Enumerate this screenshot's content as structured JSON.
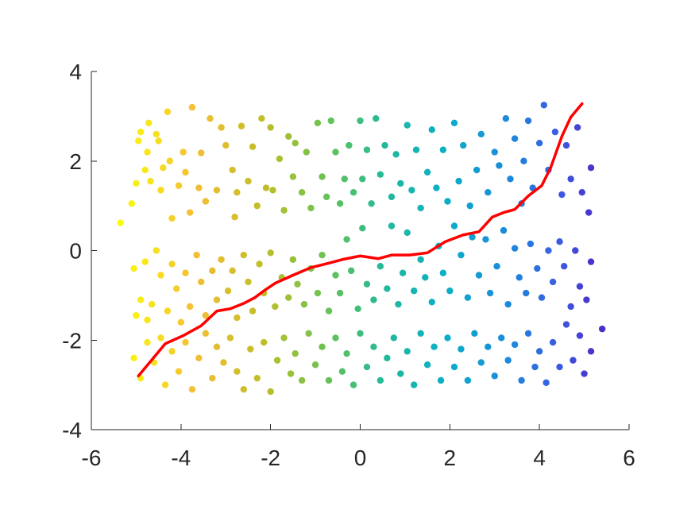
{
  "chart_data": {
    "type": "scatter",
    "title": "",
    "xlabel": "",
    "ylabel": "",
    "xlim": [
      -6,
      6
    ],
    "ylim": [
      -4,
      4
    ],
    "x_ticks": [
      "-6",
      "-4",
      "-2",
      "0",
      "2",
      "4",
      "6"
    ],
    "y_ticks": [
      "4",
      "2",
      "0",
      "-2",
      "-4"
    ],
    "x_tick_values": [
      -6,
      -4,
      -2,
      0,
      2,
      4,
      6
    ],
    "y_tick_values": [
      4,
      2,
      0,
      -2,
      -4
    ],
    "grid": false,
    "box": false,
    "colormap": "parula",
    "color_encodes": "x (yellow at -5 to blue at +5)",
    "scatter_points": [
      [
        -5.35,
        0.62
      ],
      [
        -5.1,
        1.05
      ],
      [
        -5.0,
        1.5
      ],
      [
        -4.95,
        2.45
      ],
      [
        -4.9,
        2.65
      ],
      [
        -4.8,
        1.8
      ],
      [
        -4.75,
        2.2
      ],
      [
        -4.72,
        2.85
      ],
      [
        -4.68,
        1.55
      ],
      [
        -4.55,
        2.6
      ],
      [
        -4.5,
        2.45
      ],
      [
        -4.45,
        1.35
      ],
      [
        -4.4,
        1.85
      ],
      [
        -4.3,
        3.1
      ],
      [
        -4.25,
        2.0
      ],
      [
        -4.2,
        0.72
      ],
      [
        -4.05,
        1.45
      ],
      [
        -3.95,
        2.2
      ],
      [
        -3.9,
        1.75
      ],
      [
        -3.8,
        0.85
      ],
      [
        -3.75,
        3.2
      ],
      [
        -3.6,
        1.4
      ],
      [
        -3.55,
        2.18
      ],
      [
        -3.45,
        1.1
      ],
      [
        -3.35,
        2.95
      ],
      [
        -3.2,
        1.35
      ],
      [
        -3.1,
        2.75
      ],
      [
        -3.0,
        2.35
      ],
      [
        -2.85,
        1.8
      ],
      [
        -2.8,
        0.75
      ],
      [
        -2.75,
        1.3
      ],
      [
        -2.65,
        2.78
      ],
      [
        -2.5,
        1.55
      ],
      [
        -2.4,
        2.32
      ],
      [
        -2.3,
        1.0
      ],
      [
        -2.2,
        2.95
      ],
      [
        -2.1,
        1.4
      ],
      [
        -2.0,
        2.75
      ],
      [
        -1.95,
        1.35
      ],
      [
        -1.8,
        2.05
      ],
      [
        -1.7,
        0.9
      ],
      [
        -1.6,
        2.55
      ],
      [
        -1.5,
        1.65
      ],
      [
        -1.45,
        2.4
      ],
      [
        -1.3,
        1.3
      ],
      [
        -1.2,
        2.2
      ],
      [
        -1.1,
        0.95
      ],
      [
        -0.95,
        2.85
      ],
      [
        -0.85,
        1.65
      ],
      [
        -0.75,
        1.2
      ],
      [
        -0.65,
        2.9
      ],
      [
        -0.55,
        2.2
      ],
      [
        -0.45,
        1.05
      ],
      [
        -0.35,
        1.6
      ],
      [
        -0.25,
        2.35
      ],
      [
        -0.15,
        1.3
      ],
      [
        0.0,
        2.9
      ],
      [
        0.05,
        1.6
      ],
      [
        0.15,
        2.25
      ],
      [
        0.25,
        1.05
      ],
      [
        0.35,
        2.95
      ],
      [
        0.45,
        1.7
      ],
      [
        0.55,
        2.35
      ],
      [
        0.7,
        1.2
      ],
      [
        0.8,
        2.15
      ],
      [
        0.9,
        1.5
      ],
      [
        1.05,
        2.8
      ],
      [
        1.15,
        1.35
      ],
      [
        1.25,
        2.25
      ],
      [
        1.35,
        0.95
      ],
      [
        1.5,
        1.75
      ],
      [
        1.6,
        2.7
      ],
      [
        1.7,
        1.4
      ],
      [
        1.85,
        2.25
      ],
      [
        1.95,
        1.1
      ],
      [
        2.1,
        2.85
      ],
      [
        2.2,
        1.55
      ],
      [
        2.3,
        2.35
      ],
      [
        2.45,
        1.0
      ],
      [
        2.6,
        1.8
      ],
      [
        2.7,
        2.6
      ],
      [
        2.85,
        1.3
      ],
      [
        3.0,
        2.2
      ],
      [
        3.1,
        1.9
      ],
      [
        3.25,
        2.95
      ],
      [
        3.35,
        1.6
      ],
      [
        3.45,
        2.5
      ],
      [
        3.6,
        1.05
      ],
      [
        3.65,
        2.0
      ],
      [
        3.75,
        2.9
      ],
      [
        3.85,
        1.4
      ],
      [
        4.0,
        2.4
      ],
      [
        4.1,
        3.25
      ],
      [
        4.2,
        1.8
      ],
      [
        4.35,
        2.65
      ],
      [
        4.5,
        1.25
      ],
      [
        4.6,
        2.35
      ],
      [
        4.7,
        1.6
      ],
      [
        4.85,
        2.75
      ],
      [
        4.95,
        1.3
      ],
      [
        5.1,
        0.85
      ],
      [
        5.15,
        1.85
      ],
      [
        -5.05,
        -0.4
      ],
      [
        -5.0,
        -1.45
      ],
      [
        -4.9,
        -1.1
      ],
      [
        -4.8,
        -0.25
      ],
      [
        -4.75,
        -1.55
      ],
      [
        -4.65,
        -1.2
      ],
      [
        -4.55,
        -0.0
      ],
      [
        -4.45,
        -0.55
      ],
      [
        -4.3,
        -1.35
      ],
      [
        -4.2,
        -0.3
      ],
      [
        -4.1,
        -0.85
      ],
      [
        -4.0,
        -1.6
      ],
      [
        -3.9,
        -0.5
      ],
      [
        -3.8,
        -1.25
      ],
      [
        -3.65,
        -0.1
      ],
      [
        -3.55,
        -0.7
      ],
      [
        -3.45,
        -1.45
      ],
      [
        -3.3,
        -0.45
      ],
      [
        -3.2,
        -1.1
      ],
      [
        -3.1,
        -0.2
      ],
      [
        -2.95,
        -0.9
      ],
      [
        -2.85,
        -0.45
      ],
      [
        -2.75,
        -1.5
      ],
      [
        -2.6,
        -0.1
      ],
      [
        -2.5,
        -0.7
      ],
      [
        -2.4,
        -1.35
      ],
      [
        -2.25,
        -0.3
      ],
      [
        -2.15,
        -0.95
      ],
      [
        -2.0,
        -0.05
      ],
      [
        -1.9,
        -1.25
      ],
      [
        -1.75,
        -0.6
      ],
      [
        -1.6,
        -1.05
      ],
      [
        -1.5,
        -0.2
      ],
      [
        -1.4,
        -0.75
      ],
      [
        -1.25,
        -1.2
      ],
      [
        -1.1,
        -0.4
      ],
      [
        -0.95,
        -0.95
      ],
      [
        -0.85,
        -0.1
      ],
      [
        -0.7,
        -1.35
      ],
      [
        -0.55,
        -0.55
      ],
      [
        -0.45,
        -0.95
      ],
      [
        -0.3,
        0.25
      ],
      [
        -0.2,
        -0.45
      ],
      [
        -0.05,
        -1.3
      ],
      [
        0.05,
        0.5
      ],
      [
        0.15,
        -0.75
      ],
      [
        0.3,
        -1.1
      ],
      [
        0.45,
        -0.35
      ],
      [
        0.6,
        -0.85
      ],
      [
        0.7,
        0.55
      ],
      [
        0.85,
        -1.2
      ],
      [
        0.95,
        -0.5
      ],
      [
        1.05,
        0.4
      ],
      [
        1.2,
        -0.9
      ],
      [
        1.35,
        -0.2
      ],
      [
        1.45,
        -0.6
      ],
      [
        1.6,
        -1.15
      ],
      [
        1.75,
        0.1
      ],
      [
        1.85,
        -0.5
      ],
      [
        2.0,
        -0.9
      ],
      [
        2.1,
        0.55
      ],
      [
        2.25,
        -0.1
      ],
      [
        2.4,
        -1.05
      ],
      [
        2.5,
        0.3
      ],
      [
        2.65,
        -0.55
      ],
      [
        2.8,
        0.25
      ],
      [
        2.9,
        -0.95
      ],
      [
        3.05,
        -0.35
      ],
      [
        3.2,
        0.45
      ],
      [
        3.3,
        -1.2
      ],
      [
        3.45,
        0.05
      ],
      [
        3.55,
        -0.6
      ],
      [
        3.7,
        -0.95
      ],
      [
        3.8,
        0.15
      ],
      [
        3.95,
        -0.4
      ],
      [
        4.05,
        -1.05
      ],
      [
        4.2,
        0.0
      ],
      [
        4.3,
        -0.7
      ],
      [
        4.45,
        0.2
      ],
      [
        4.55,
        -0.35
      ],
      [
        4.7,
        -1.25
      ],
      [
        4.8,
        -0.0
      ],
      [
        4.9,
        -0.8
      ],
      [
        5.05,
        -1.1
      ],
      [
        5.15,
        -0.25
      ],
      [
        -5.05,
        -2.4
      ],
      [
        -4.9,
        -2.85
      ],
      [
        -4.75,
        -2.05
      ],
      [
        -4.6,
        -2.5
      ],
      [
        -4.45,
        -1.95
      ],
      [
        -4.35,
        -3.0
      ],
      [
        -4.2,
        -2.25
      ],
      [
        -4.05,
        -2.7
      ],
      [
        -3.9,
        -2.05
      ],
      [
        -3.75,
        -3.1
      ],
      [
        -3.6,
        -2.4
      ],
      [
        -3.45,
        -1.85
      ],
      [
        -3.3,
        -2.85
      ],
      [
        -3.2,
        -2.15
      ],
      [
        -3.05,
        -2.5
      ],
      [
        -2.9,
        -1.95
      ],
      [
        -2.75,
        -2.7
      ],
      [
        -2.6,
        -3.1
      ],
      [
        -2.45,
        -2.2
      ],
      [
        -2.3,
        -2.85
      ],
      [
        -2.15,
        -2.05
      ],
      [
        -2.0,
        -3.15
      ],
      [
        -1.85,
        -2.45
      ],
      [
        -1.7,
        -1.95
      ],
      [
        -1.55,
        -2.75
      ],
      [
        -1.45,
        -2.3
      ],
      [
        -1.3,
        -2.9
      ],
      [
        -1.15,
        -1.85
      ],
      [
        -1.0,
        -2.55
      ],
      [
        -0.85,
        -2.15
      ],
      [
        -0.7,
        -2.9
      ],
      [
        -0.55,
        -1.95
      ],
      [
        -0.4,
        -2.7
      ],
      [
        -0.3,
        -2.3
      ],
      [
        -0.15,
        -3.0
      ],
      [
        0.0,
        -1.85
      ],
      [
        0.15,
        -2.6
      ],
      [
        0.3,
        -2.15
      ],
      [
        0.45,
        -2.9
      ],
      [
        0.6,
        -2.4
      ],
      [
        0.75,
        -1.95
      ],
      [
        0.9,
        -2.75
      ],
      [
        1.05,
        -2.25
      ],
      [
        1.2,
        -3.0
      ],
      [
        1.35,
        -1.85
      ],
      [
        1.5,
        -2.55
      ],
      [
        1.65,
        -2.15
      ],
      [
        1.8,
        -2.9
      ],
      [
        1.95,
        -1.95
      ],
      [
        2.1,
        -2.6
      ],
      [
        2.25,
        -2.2
      ],
      [
        2.4,
        -2.9
      ],
      [
        2.55,
        -1.85
      ],
      [
        2.7,
        -2.5
      ],
      [
        2.85,
        -2.15
      ],
      [
        3.0,
        -2.8
      ],
      [
        3.15,
        -1.95
      ],
      [
        3.3,
        -2.45
      ],
      [
        3.45,
        -2.1
      ],
      [
        3.6,
        -2.9
      ],
      [
        3.75,
        -1.85
      ],
      [
        3.9,
        -2.6
      ],
      [
        4.0,
        -2.25
      ],
      [
        4.15,
        -2.95
      ],
      [
        4.3,
        -2.05
      ],
      [
        4.45,
        -2.6
      ],
      [
        4.6,
        -1.65
      ],
      [
        4.75,
        -2.45
      ],
      [
        4.9,
        -1.9
      ],
      [
        5.0,
        -2.75
      ],
      [
        5.15,
        -2.25
      ],
      [
        5.4,
        -1.75
      ]
    ],
    "series": [
      {
        "values_xy": [
          [
            -4.95,
            -2.8
          ],
          [
            -4.35,
            -2.08
          ],
          [
            -3.95,
            -1.9
          ],
          [
            -3.55,
            -1.68
          ],
          [
            -3.2,
            -1.35
          ],
          [
            -2.9,
            -1.3
          ],
          [
            -2.6,
            -1.18
          ],
          [
            -2.35,
            -1.05
          ],
          [
            -2.15,
            -0.9
          ],
          [
            -1.9,
            -0.73
          ],
          [
            -1.5,
            -0.55
          ],
          [
            -1.1,
            -0.38
          ],
          [
            -0.7,
            -0.28
          ],
          [
            -0.4,
            -0.2
          ],
          [
            0.0,
            -0.12
          ],
          [
            0.4,
            -0.18
          ],
          [
            0.7,
            -0.1
          ],
          [
            1.1,
            -0.1
          ],
          [
            1.5,
            -0.05
          ],
          [
            1.9,
            0.2
          ],
          [
            2.3,
            0.35
          ],
          [
            2.65,
            0.42
          ],
          [
            2.95,
            0.75
          ],
          [
            3.2,
            0.85
          ],
          [
            3.45,
            0.92
          ],
          [
            3.75,
            1.22
          ],
          [
            4.05,
            1.45
          ],
          [
            4.25,
            1.85
          ],
          [
            4.5,
            2.55
          ],
          [
            4.7,
            2.98
          ],
          [
            4.95,
            3.28
          ]
        ],
        "color": "#ff0000"
      }
    ],
    "colors": {
      "line": "#ff0000",
      "axes": "#262626",
      "background": "#ffffff"
    }
  }
}
